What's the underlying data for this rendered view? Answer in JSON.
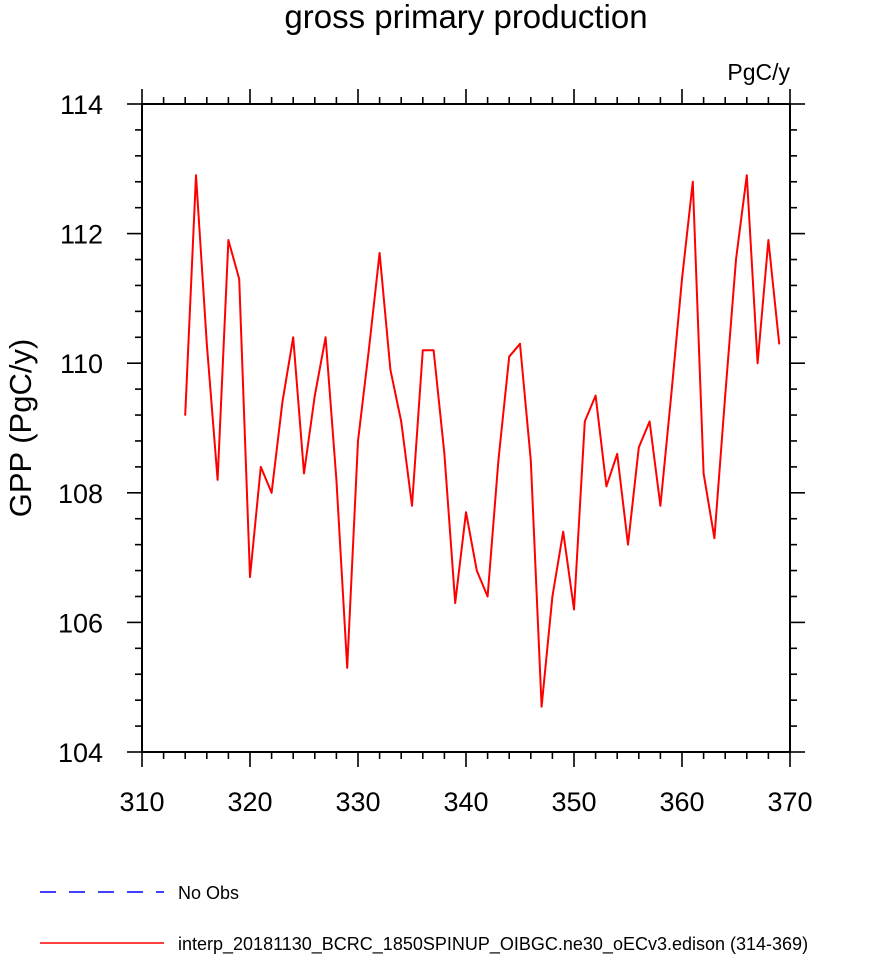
{
  "chart_data": {
    "type": "line",
    "title": "gross primary production",
    "units_label": "PgC/y",
    "ylabel": "GPP  (PgC/y)",
    "xlabel": "",
    "xlim": [
      310,
      370
    ],
    "ylim": [
      104,
      114
    ],
    "xticks": [
      "310",
      "320",
      "330",
      "340",
      "350",
      "360",
      "370"
    ],
    "yticks": [
      "104",
      "106",
      "108",
      "110",
      "112",
      "114"
    ],
    "grid": false,
    "legend_position": "bottom-left",
    "series": [
      {
        "name": "interp_20181130_BCRC_1850SPINUP_OIBGC.ne30_oECv3.edison (314-369)",
        "color": "#ff0000",
        "style": "solid",
        "x": [
          314,
          315,
          316,
          317,
          318,
          319,
          320,
          321,
          322,
          323,
          324,
          325,
          326,
          327,
          328,
          329,
          330,
          331,
          332,
          333,
          334,
          335,
          336,
          337,
          338,
          339,
          340,
          341,
          342,
          343,
          344,
          345,
          346,
          347,
          348,
          349,
          350,
          351,
          352,
          353,
          354,
          355,
          356,
          357,
          358,
          359,
          360,
          361,
          362,
          363,
          364,
          365,
          366,
          367,
          368,
          369
        ],
        "values": [
          109.2,
          112.9,
          110.3,
          108.2,
          111.9,
          111.3,
          106.7,
          108.4,
          108.0,
          109.4,
          110.4,
          108.3,
          109.5,
          110.4,
          108.2,
          105.3,
          108.8,
          110.2,
          111.7,
          109.9,
          109.1,
          107.8,
          110.2,
          110.2,
          108.6,
          106.3,
          107.7,
          106.8,
          106.4,
          108.5,
          110.1,
          110.3,
          108.5,
          104.7,
          106.4,
          107.4,
          106.2,
          109.1,
          109.5,
          108.1,
          108.6,
          107.2,
          108.7,
          109.1,
          107.8,
          109.5,
          111.3,
          112.8,
          108.3,
          107.3,
          109.5,
          111.6,
          112.9,
          110.0,
          111.9,
          110.3
        ]
      }
    ],
    "legend": [
      {
        "name": "No Obs",
        "color": "#0000ff",
        "style": "dashed"
      },
      {
        "name": "interp_20181130_BCRC_1850SPINUP_OIBGC.ne30_oECv3.edison (314-369)",
        "color": "#ff0000",
        "style": "solid"
      }
    ]
  }
}
